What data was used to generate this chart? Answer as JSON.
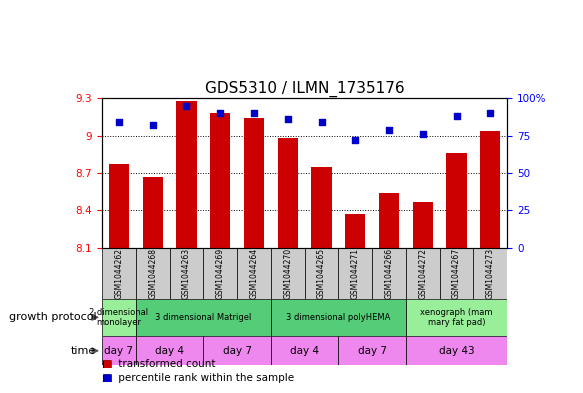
{
  "title": "GDS5310 / ILMN_1735176",
  "samples": [
    "GSM1044262",
    "GSM1044268",
    "GSM1044263",
    "GSM1044269",
    "GSM1044264",
    "GSM1044270",
    "GSM1044265",
    "GSM1044271",
    "GSM1044266",
    "GSM1044272",
    "GSM1044267",
    "GSM1044273"
  ],
  "bar_values": [
    8.77,
    8.67,
    9.28,
    9.18,
    9.14,
    8.98,
    8.75,
    8.37,
    8.54,
    8.47,
    8.86,
    9.04
  ],
  "percentile_values": [
    84,
    82,
    95,
    90,
    90,
    86,
    84,
    72,
    79,
    76,
    88,
    90
  ],
  "bar_color": "#cc0000",
  "dot_color": "#0000cc",
  "ylim_left": [
    8.1,
    9.3
  ],
  "ylim_right": [
    0,
    100
  ],
  "yticks_left": [
    8.1,
    8.4,
    8.7,
    9.0,
    9.3
  ],
  "yticks_right": [
    0,
    25,
    50,
    75,
    100
  ],
  "ytick_labels_left": [
    "8.1",
    "8.4",
    "8.7",
    "9",
    "9.3"
  ],
  "ytick_labels_right": [
    "0",
    "25",
    "50",
    "75",
    "100%"
  ],
  "bar_width": 0.6,
  "growth_protocol_groups": [
    {
      "label": "2 dimensional\nmonolayer",
      "start": 0,
      "end": 1,
      "color": "#99ee99"
    },
    {
      "label": "3 dimensional Matrigel",
      "start": 1,
      "end": 5,
      "color": "#55cc77"
    },
    {
      "label": "3 dimensional polyHEMA",
      "start": 5,
      "end": 9,
      "color": "#55cc77"
    },
    {
      "label": "xenograph (mam\nmary fat pad)",
      "start": 9,
      "end": 12,
      "color": "#99ee99"
    }
  ],
  "time_groups": [
    {
      "label": "day 7",
      "start": 0,
      "end": 1,
      "color": "#ee88ee"
    },
    {
      "label": "day 4",
      "start": 1,
      "end": 3,
      "color": "#ee88ee"
    },
    {
      "label": "day 7",
      "start": 3,
      "end": 5,
      "color": "#ee88ee"
    },
    {
      "label": "day 4",
      "start": 5,
      "end": 7,
      "color": "#ee88ee"
    },
    {
      "label": "day 7",
      "start": 7,
      "end": 9,
      "color": "#ee88ee"
    },
    {
      "label": "day 43",
      "start": 9,
      "end": 12,
      "color": "#ee88ee"
    }
  ],
  "sample_box_color": "#cccccc",
  "growth_protocol_label": "growth protocol",
  "time_label": "time",
  "title_fontsize": 11,
  "tick_fontsize": 7.5,
  "label_fontsize": 8,
  "annotation_fontsize": 7.5
}
